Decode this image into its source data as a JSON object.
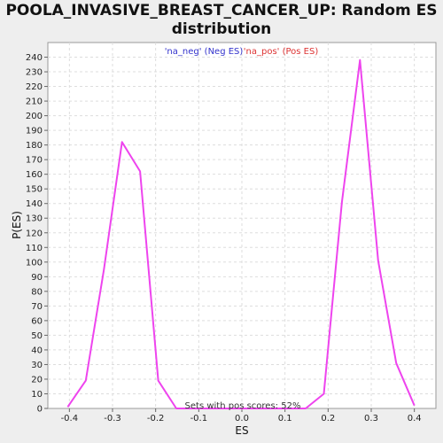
{
  "chart_data": {
    "type": "line",
    "title_line1": "POOLA_INVASIVE_BREAST_CANCER_UP: Random ES",
    "title_line2": "distribution",
    "xlabel": "ES",
    "ylabel": "P(ES)",
    "xlim": [
      -0.45,
      0.45
    ],
    "ylim": [
      0,
      250
    ],
    "xticks": [
      -0.4,
      -0.3,
      -0.2,
      -0.1,
      0.0,
      0.1,
      0.2,
      0.3,
      0.4
    ],
    "xtick_labels": [
      "-0.4",
      "-0.3",
      "-0.2",
      "-0.1",
      "0.0",
      "0.1",
      "0.2",
      "0.3",
      "0.4"
    ],
    "yticks": [
      0,
      10,
      20,
      30,
      40,
      50,
      60,
      70,
      80,
      90,
      100,
      110,
      120,
      130,
      140,
      150,
      160,
      170,
      180,
      190,
      200,
      210,
      220,
      230,
      240
    ],
    "grid": true,
    "legend": {
      "placement": "top-center",
      "entries": [
        {
          "label": "'na_neg' (Neg ES)",
          "color": "#3333cc"
        },
        {
          "label": "'na_pos' (Pos ES)",
          "color": "#dd3333"
        }
      ]
    },
    "annotation": "Sets with pos scores: 52%",
    "series": [
      {
        "color": "#ee44ee",
        "x": [
          -0.404,
          -0.362,
          -0.32,
          -0.278,
          -0.236,
          -0.194,
          -0.152,
          0.148,
          0.19,
          0.232,
          0.274,
          0.316,
          0.358,
          0.4
        ],
        "y": [
          1,
          19,
          95,
          182,
          162,
          19,
          0,
          0,
          10,
          141,
          238,
          101,
          31,
          2
        ]
      }
    ]
  }
}
